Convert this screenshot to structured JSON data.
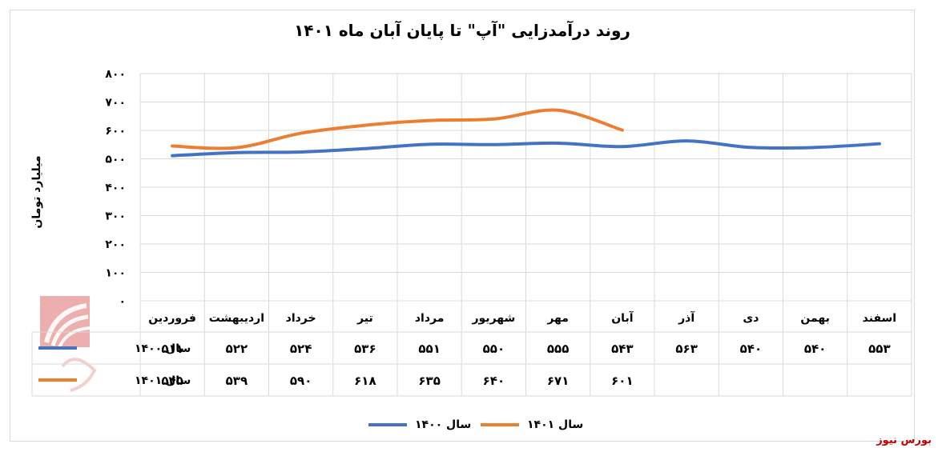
{
  "title": "روند درآمدزایی \"آپ\" تا پایان آبان ماه ۱۴۰۱",
  "source": "بورس نیوز",
  "chart_data": {
    "type": "line",
    "title": "روند درآمدزایی \"آپ\" تا پایان آبان ماه ۱۴۰۱",
    "ylabel": "میلیارد تومان",
    "xlabel": "",
    "ylim": [
      0,
      800
    ],
    "yticks": [
      0,
      100,
      200,
      300,
      400,
      500,
      600,
      700,
      800
    ],
    "ytick_labels": [
      "۰",
      "۱۰۰",
      "۲۰۰",
      "۳۰۰",
      "۴۰۰",
      "۵۰۰",
      "۶۰۰",
      "۷۰۰",
      "۸۰۰"
    ],
    "grid": true,
    "legend_position": "bottom",
    "categories": [
      "فروردین",
      "اردیبهشت",
      "خرداد",
      "تیر",
      "مرداد",
      "شهریور",
      "مهر",
      "آبان",
      "آذر",
      "دی",
      "بهمن",
      "اسفند"
    ],
    "series": [
      {
        "name": "سال ۱۴۰۰",
        "color": "#4472c4",
        "values": [
          511,
          522,
          524,
          536,
          551,
          550,
          555,
          543,
          563,
          540,
          540,
          553
        ],
        "value_labels": [
          "۵۱۱",
          "۵۲۲",
          "۵۲۴",
          "۵۳۶",
          "۵۵۱",
          "۵۵۰",
          "۵۵۵",
          "۵۴۳",
          "۵۶۳",
          "۵۴۰",
          "۵۴۰",
          "۵۵۳"
        ]
      },
      {
        "name": "سال ۱۴۰۱",
        "color": "#ed7d31",
        "values": [
          545,
          539,
          590,
          618,
          635,
          640,
          671,
          601,
          null,
          null,
          null,
          null
        ],
        "value_labels": [
          "۵۴۵",
          "۵۳۹",
          "۵۹۰",
          "۶۱۸",
          "۶۳۵",
          "۶۴۰",
          "۶۷۱",
          "۶۰۱",
          "",
          "",
          "",
          ""
        ]
      }
    ]
  }
}
